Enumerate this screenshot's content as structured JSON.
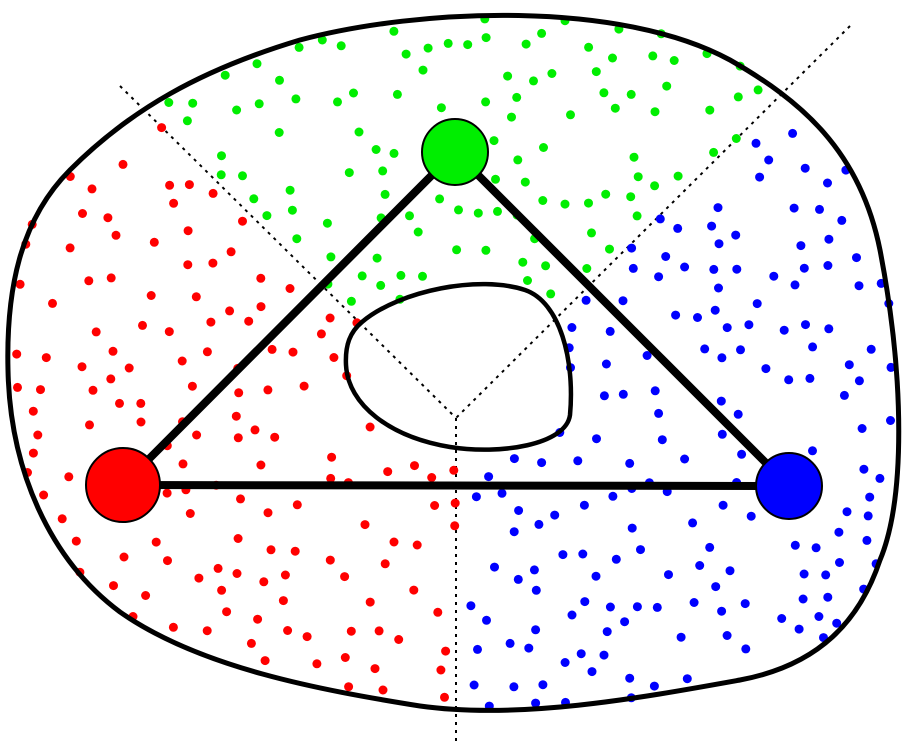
{
  "colors": {
    "background": "#ffffff",
    "outline": "#000000",
    "red": "#ff0000",
    "green": "#00ee00",
    "blue": "#0000ff"
  },
  "diagram": {
    "description_free": true,
    "regions": [
      {
        "name": "red-region",
        "color_key": "red"
      },
      {
        "name": "green-region",
        "color_key": "green"
      },
      {
        "name": "blue-region",
        "color_key": "blue"
      }
    ],
    "nodes": [
      {
        "name": "red-node",
        "color_key": "red"
      },
      {
        "name": "green-node",
        "color_key": "green"
      },
      {
        "name": "blue-node",
        "color_key": "blue"
      }
    ],
    "edges": [
      {
        "name": "edge-red-green",
        "from": "red-node",
        "to": "green-node"
      },
      {
        "name": "edge-green-blue",
        "from": "green-node",
        "to": "blue-node"
      },
      {
        "name": "edge-red-blue",
        "from": "red-node",
        "to": "blue-node"
      }
    ]
  }
}
